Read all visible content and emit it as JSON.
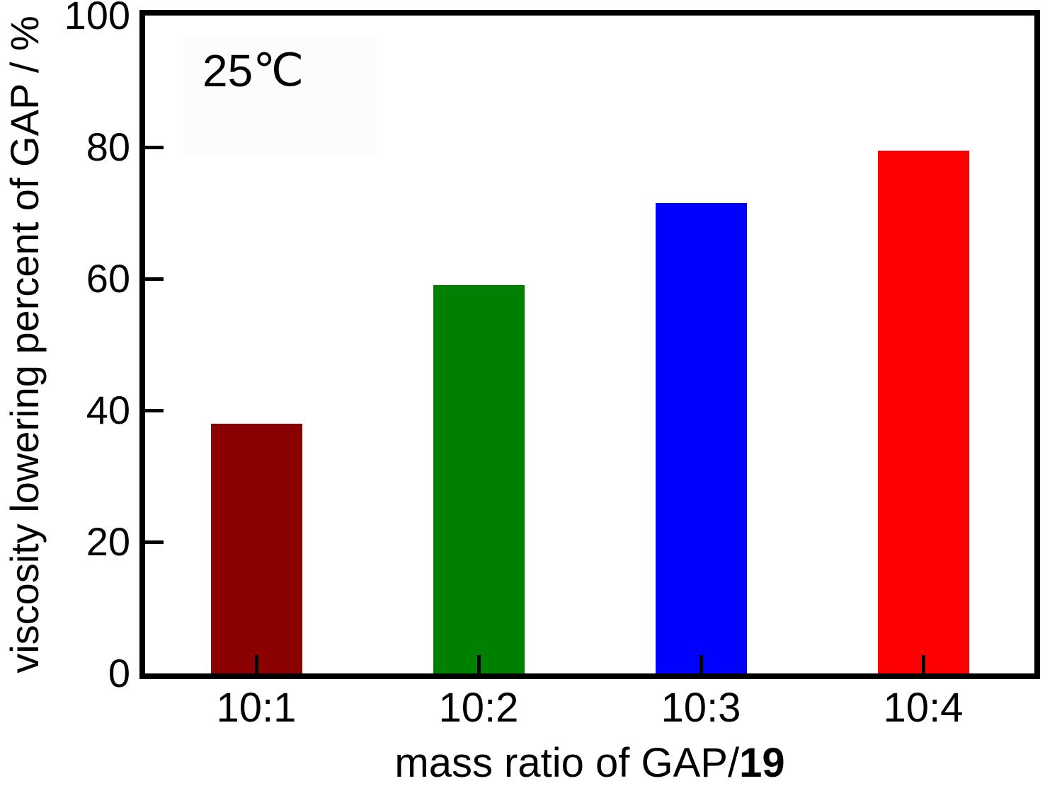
{
  "chart_data": {
    "type": "bar",
    "title": "",
    "annotation": "25 ℃",
    "annotation_value": "25",
    "annotation_unit": " ℃",
    "xlabel": "mass ratio of GAP/19",
    "xlabel_regular": "mass ratio of GAP/",
    "xlabel_bold": "19",
    "ylabel": "viscosity lowering percent of GAP / %",
    "categories": [
      "10:1",
      "10:2",
      "10:3",
      "10:4"
    ],
    "values": [
      38,
      59,
      71.5,
      79.5
    ],
    "bar_colors": [
      "#8b0000",
      "#008000",
      "#0000ff",
      "#ff0000"
    ],
    "ylim": [
      0,
      100
    ],
    "yticks": [
      0,
      20,
      40,
      60,
      80,
      100
    ],
    "grid": false,
    "legend": "none",
    "axis_color": "#000000",
    "text_color": "#000000",
    "background": "#ffffff"
  }
}
